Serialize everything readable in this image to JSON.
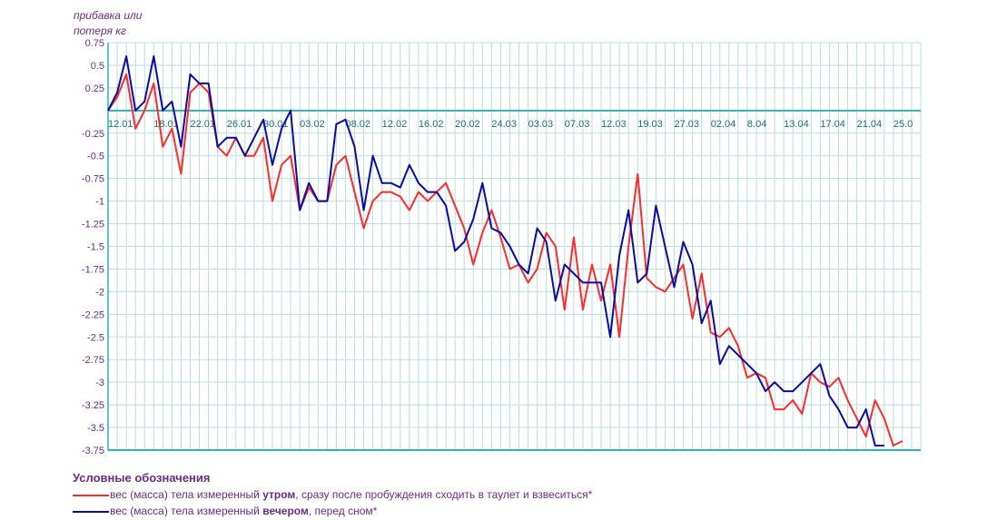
{
  "chart_data": {
    "type": "line",
    "ylabel_line1": "прибавка или",
    "ylabel_line2": "потеря кг",
    "ylim": [
      -3.75,
      0.75
    ],
    "yticks": [
      0.75,
      0.5,
      0.25,
      -0.25,
      -0.5,
      -0.75,
      -1,
      -1.25,
      -1.5,
      -1.75,
      -2,
      -2.25,
      -2.5,
      -2.75,
      -3,
      -3.25,
      -3.5,
      -3.75
    ],
    "x_start_index": 0,
    "x_end_index": 89,
    "xticks": [
      {
        "index": 0,
        "label": "12.01"
      },
      {
        "index": 5,
        "label": "18.01"
      },
      {
        "index": 9,
        "label": "22.01"
      },
      {
        "index": 13,
        "label": "26.01"
      },
      {
        "index": 17,
        "label": "30.01"
      },
      {
        "index": 21,
        "label": "03.02"
      },
      {
        "index": 26,
        "label": "08.02"
      },
      {
        "index": 30,
        "label": "12.02"
      },
      {
        "index": 34,
        "label": "16.02"
      },
      {
        "index": 38,
        "label": "20.02"
      },
      {
        "index": 42,
        "label": "24.03"
      },
      {
        "index": 46,
        "label": "03.03"
      },
      {
        "index": 50,
        "label": "07.03"
      },
      {
        "index": 54,
        "label": "12.03"
      },
      {
        "index": 58,
        "label": "19.03"
      },
      {
        "index": 62,
        "label": "27.03"
      },
      {
        "index": 66,
        "label": "02.04"
      },
      {
        "index": 70,
        "label": "8.04"
      },
      {
        "index": 74,
        "label": "13.04"
      },
      {
        "index": 78,
        "label": "17.04"
      },
      {
        "index": 82,
        "label": "21.04"
      },
      {
        "index": 86,
        "label": "25.0"
      }
    ],
    "series": [
      {
        "color": "#ff2a2a",
        "values": [
          0,
          0.15,
          0.4,
          -0.2,
          0,
          0.3,
          -0.4,
          -0.2,
          -0.7,
          0.2,
          0.3,
          0.2,
          -0.4,
          -0.5,
          -0.3,
          -0.5,
          -0.5,
          -0.3,
          -1,
          -0.6,
          -0.5,
          -1.1,
          -0.85,
          -1,
          -1,
          -0.6,
          -0.5,
          -0.9,
          -1.3,
          -1,
          -0.9,
          -0.9,
          -0.95,
          -1.1,
          -0.9,
          -1,
          -0.9,
          -0.8,
          -1.05,
          -1.3,
          -1.7,
          -1.35,
          -1.1,
          -1.4,
          -1.75,
          -1.7,
          -1.9,
          -1.75,
          -1.35,
          -1.5,
          -2.2,
          -1.4,
          -2.2,
          -1.7,
          -2.1,
          -1.7,
          -2.5,
          -1.5,
          -0.7,
          -1.85,
          -1.95,
          -2,
          -1.85,
          -1.7,
          -2.3,
          -1.8,
          -2.45,
          -2.5,
          -2.4,
          -2.6,
          -2.95,
          -2.9,
          -2.95,
          -3.3,
          -3.3,
          -3.2,
          -3.35,
          -2.9,
          -3,
          -3.05,
          -2.95,
          -3.2,
          -3.4,
          -3.6,
          -3.2,
          -3.4,
          -3.7,
          -3.65
        ]
      },
      {
        "color": "#0a0aa8",
        "values": [
          0,
          0.2,
          0.6,
          0,
          0.1,
          0.6,
          0,
          0.1,
          -0.4,
          0.4,
          0.3,
          0.3,
          -0.4,
          -0.3,
          -0.3,
          -0.5,
          -0.3,
          -0.1,
          -0.6,
          -0.2,
          0,
          -1.1,
          -0.8,
          -1,
          -1,
          -0.15,
          -0.1,
          -0.4,
          -1.1,
          -0.5,
          -0.8,
          -0.8,
          -0.85,
          -0.6,
          -0.8,
          -0.9,
          -0.9,
          -1.05,
          -1.55,
          -1.45,
          -1.2,
          -0.8,
          -1.3,
          -1.35,
          -1.5,
          -1.7,
          -1.8,
          -1.3,
          -1.45,
          -2.1,
          -1.7,
          -1.8,
          -1.9,
          -1.9,
          -1.9,
          -2.5,
          -1.6,
          -1.1,
          -1.9,
          -1.8,
          -1.05,
          -1.5,
          -1.95,
          -1.45,
          -1.7,
          -2.35,
          -2.1,
          -2.8,
          -2.6,
          -2.7,
          -2.8,
          -2.9,
          -3.1,
          -3,
          -3.1,
          -3.1,
          -3,
          -2.9,
          -2.8,
          -3.15,
          -3.3,
          -3.5,
          -3.5,
          -3.3,
          -3.7,
          -3.7
        ]
      }
    ],
    "legend": {
      "title": "Условные обозначения",
      "items": [
        {
          "color": "#ff2a2a",
          "pre": "вес (масса) тела измеренный ",
          "bold": "утром",
          "post": ", сразу после пробуждения сходить в таулет и взвеситься*"
        },
        {
          "color": "#0a0aa8",
          "pre": "вес (масса) тела измеренный ",
          "bold": "вечером",
          "post": ", перед сном*"
        }
      ]
    }
  }
}
